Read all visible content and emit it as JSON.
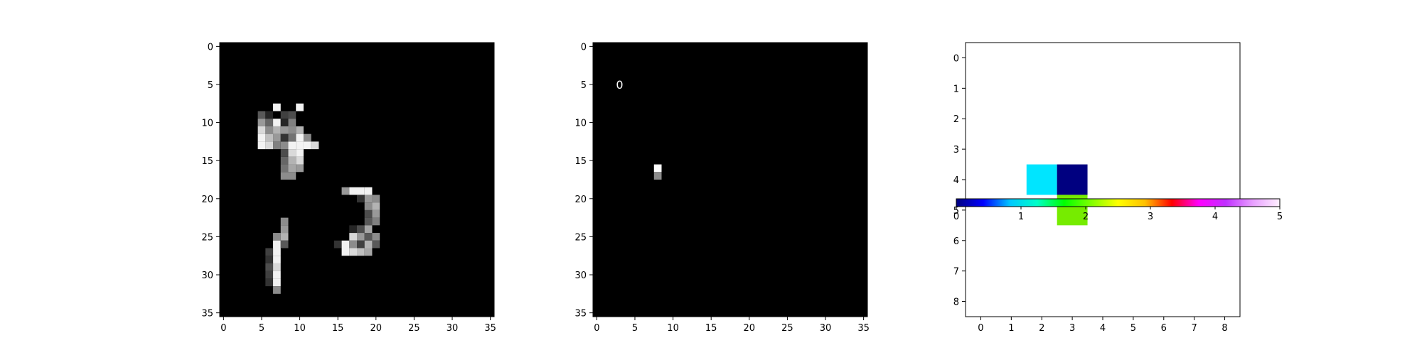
{
  "chart_data": [
    {
      "type": "heatmap",
      "title": "",
      "colormap": "gray",
      "background_color": "#000000",
      "grid": false,
      "xlim": [
        -0.5,
        35.5
      ],
      "ylim": [
        35.5,
        -0.5
      ],
      "xticks": [
        "0",
        "5",
        "10",
        "15",
        "20",
        "25",
        "30",
        "35"
      ],
      "yticks": [
        "0",
        "5",
        "10",
        "15",
        "20",
        "25",
        "30",
        "35"
      ],
      "cells": [
        [
          8,
          7,
          0.95
        ],
        [
          10,
          7,
          0.95
        ],
        [
          8,
          10,
          0.95
        ],
        [
          9,
          8,
          0.25
        ],
        [
          10,
          8,
          0.15
        ],
        [
          11,
          8,
          0.6
        ],
        [
          11,
          10,
          0.7
        ],
        [
          12,
          10,
          0.95
        ],
        [
          12,
          11,
          0.55
        ],
        [
          9,
          5,
          0.35
        ],
        [
          10,
          5,
          0.6
        ],
        [
          11,
          5,
          0.85
        ],
        [
          12,
          5,
          0.95
        ],
        [
          13,
          5,
          0.95
        ],
        [
          9,
          6,
          0.15
        ],
        [
          10,
          6,
          0.4
        ],
        [
          11,
          6,
          0.55
        ],
        [
          12,
          6,
          0.75
        ],
        [
          13,
          6,
          0.85
        ],
        [
          12,
          7,
          0.6
        ],
        [
          13,
          7,
          0.5
        ],
        [
          9,
          9,
          0.3
        ],
        [
          10,
          9,
          0.5
        ],
        [
          11,
          9,
          0.55
        ],
        [
          13,
          9,
          0.95
        ],
        [
          14,
          9,
          0.85
        ],
        [
          12,
          9,
          0.45
        ],
        [
          13,
          8,
          0.55
        ],
        [
          13,
          10,
          0.95
        ],
        [
          13,
          11,
          0.95
        ],
        [
          13,
          12,
          0.85
        ],
        [
          14,
          10,
          0.95
        ],
        [
          15,
          10,
          0.85
        ],
        [
          16,
          10,
          0.6
        ],
        [
          15,
          9,
          0.7
        ],
        [
          16,
          9,
          0.65
        ],
        [
          17,
          9,
          0.55
        ],
        [
          17,
          8,
          0.55
        ],
        [
          16,
          8,
          0.45
        ],
        [
          15,
          8,
          0.4
        ],
        [
          14,
          8,
          0.3
        ],
        [
          12,
          8,
          0.2
        ],
        [
          11,
          7,
          0.7
        ],
        [
          19,
          16,
          0.6
        ],
        [
          19,
          17,
          0.95
        ],
        [
          19,
          18,
          0.95
        ],
        [
          19,
          19,
          0.95
        ],
        [
          20,
          19,
          0.6
        ],
        [
          20,
          20,
          0.55
        ],
        [
          21,
          20,
          0.7
        ],
        [
          22,
          20,
          0.6
        ],
        [
          23,
          20,
          0.5
        ],
        [
          22,
          19,
          0.3
        ],
        [
          21,
          19,
          0.55
        ],
        [
          20,
          18,
          0.2
        ],
        [
          23,
          19,
          0.35
        ],
        [
          24,
          18,
          0.3
        ],
        [
          24,
          19,
          0.65
        ],
        [
          25,
          18,
          0.6
        ],
        [
          25,
          17,
          0.85
        ],
        [
          25,
          19,
          0.35
        ],
        [
          25,
          20,
          0.55
        ],
        [
          26,
          16,
          0.95
        ],
        [
          26,
          17,
          0.55
        ],
        [
          26,
          18,
          0.25
        ],
        [
          26,
          19,
          0.7
        ],
        [
          26,
          20,
          0.35
        ],
        [
          27,
          16,
          0.95
        ],
        [
          27,
          17,
          0.85
        ],
        [
          27,
          18,
          0.75
        ],
        [
          27,
          19,
          0.65
        ],
        [
          24,
          17,
          0.15
        ],
        [
          26,
          15,
          0.2
        ],
        [
          23,
          8,
          0.55
        ],
        [
          24,
          8,
          0.6
        ],
        [
          25,
          7,
          0.55
        ],
        [
          25,
          8,
          0.7
        ],
        [
          26,
          7,
          0.95
        ],
        [
          26,
          8,
          0.35
        ],
        [
          27,
          7,
          0.95
        ],
        [
          28,
          7,
          0.95
        ],
        [
          29,
          7,
          0.85
        ],
        [
          30,
          6,
          0.25
        ],
        [
          30,
          7,
          0.95
        ],
        [
          31,
          6,
          0.2
        ],
        [
          31,
          7,
          0.95
        ],
        [
          32,
          7,
          0.55
        ],
        [
          27,
          6,
          0.25
        ],
        [
          28,
          6,
          0.2
        ],
        [
          29,
          6,
          0.3
        ]
      ]
    },
    {
      "type": "heatmap",
      "title": "",
      "colormap": "gray",
      "background_color": "#000000",
      "grid": false,
      "xlim": [
        -0.5,
        35.5
      ],
      "ylim": [
        35.5,
        -0.5
      ],
      "xticks": [
        "0",
        "5",
        "10",
        "15",
        "20",
        "25",
        "30",
        "35"
      ],
      "yticks": [
        "0",
        "5",
        "10",
        "15",
        "20",
        "25",
        "30",
        "35"
      ],
      "cells": [
        [
          16,
          8,
          1.0
        ],
        [
          17,
          8,
          0.55
        ]
      ],
      "annotations": [
        {
          "text": "0",
          "x": 3,
          "y": 5
        }
      ]
    },
    {
      "type": "heatmap",
      "title": "",
      "colormap": "gist_ncar",
      "background_color": "#ffffff",
      "grid": false,
      "xlim": [
        -0.5,
        8.5
      ],
      "ylim": [
        8.5,
        -0.5
      ],
      "xticks": [
        "0",
        "1",
        "2",
        "3",
        "4",
        "5",
        "6",
        "7",
        "8"
      ],
      "yticks": [
        "0",
        "1",
        "2",
        "3",
        "4",
        "5",
        "6",
        "7",
        "8"
      ],
      "cells": [
        {
          "row": 4,
          "col": 2,
          "value": 1.3,
          "color": "#00e5ff"
        },
        {
          "row": 4,
          "col": 3,
          "value": 0.1,
          "color": "#000080"
        },
        {
          "row": 5,
          "col": 3,
          "value": 2.0,
          "color": "#76ec00"
        }
      ],
      "colorbar": {
        "orientation": "horizontal",
        "range": [
          0,
          5
        ],
        "ticks": [
          "0",
          "1",
          "2",
          "3",
          "4",
          "5"
        ],
        "colors": [
          "#000080",
          "#0000ff",
          "#00c8ff",
          "#00ffc8",
          "#00ff00",
          "#7fff00",
          "#ffff00",
          "#ffc000",
          "#ff0000",
          "#ff00ff",
          "#c030ff",
          "#e8a0ff",
          "#fff0ff"
        ]
      }
    }
  ]
}
